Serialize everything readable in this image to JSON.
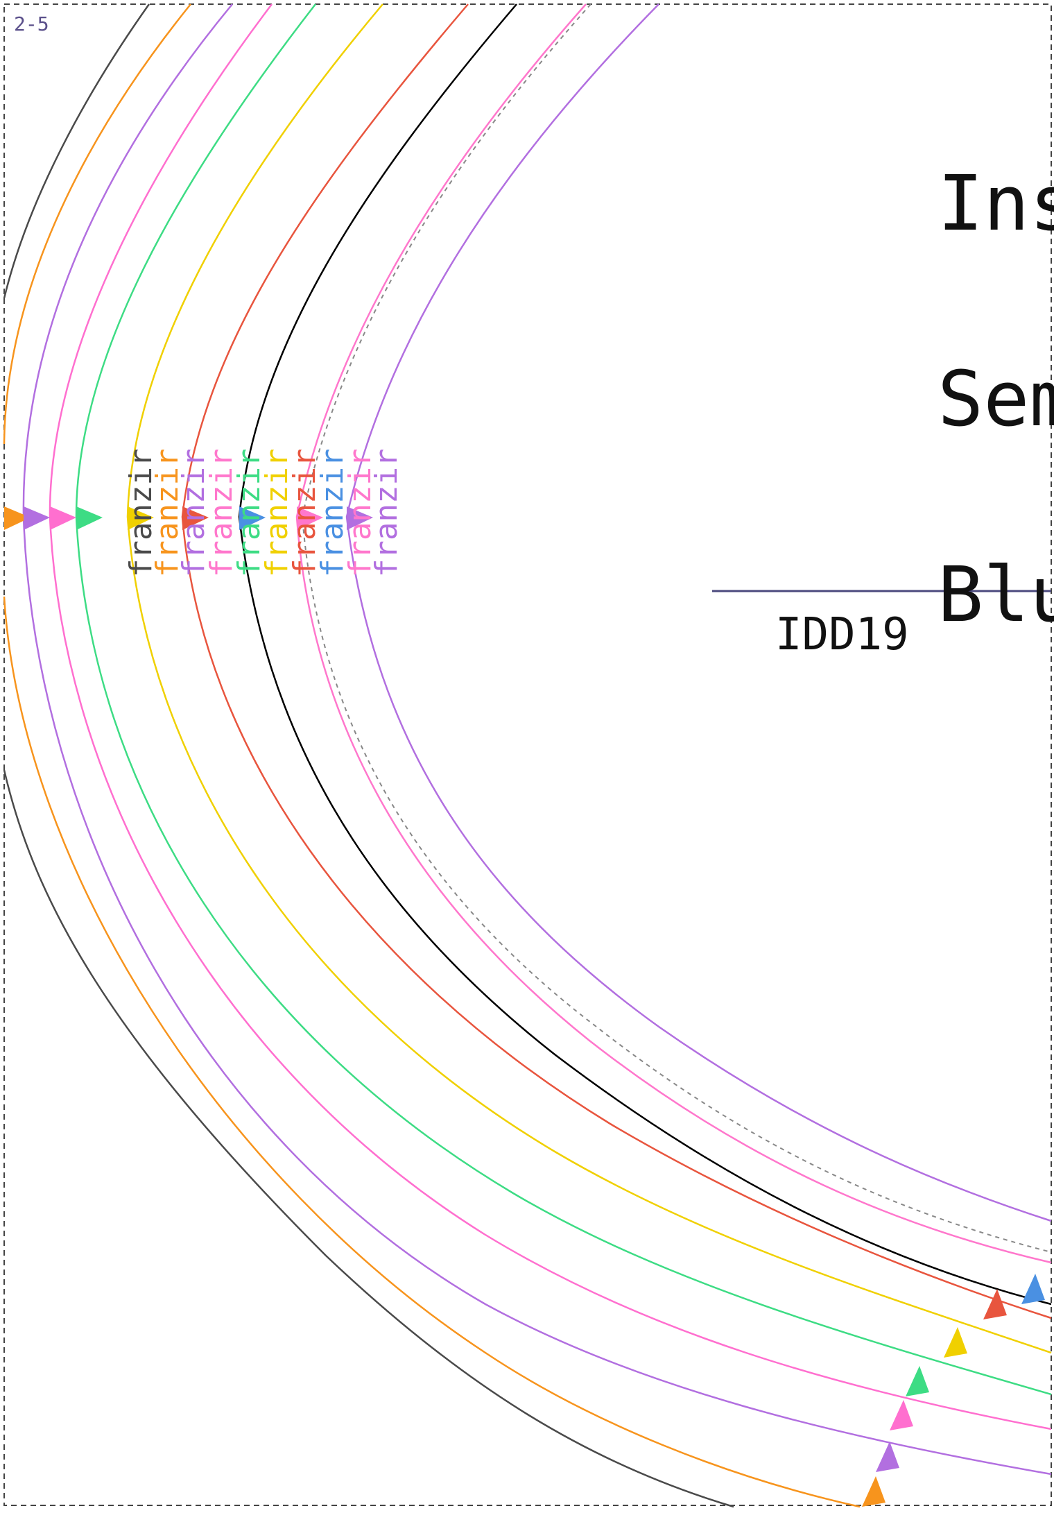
{
  "page_label": "2-5",
  "title_lines": [
    "Ins",
    "Sem",
    "Blu"
  ],
  "id_label": "IDD19",
  "route_label": "franzir",
  "colors": {
    "frame": "#444444",
    "rule": "#4b4a7e",
    "dashed_route": "#888888"
  },
  "routes": [
    {
      "color": "#4a4a4a",
      "arrow": false
    },
    {
      "color": "#f7941d",
      "arrow": true
    },
    {
      "color": "#b26fe0",
      "arrow": true
    },
    {
      "color": "#ff6fcf",
      "arrow": true
    },
    {
      "color": "#3ddc84",
      "arrow": true
    },
    {
      "color": "#f0d000",
      "arrow": true
    },
    {
      "color": "#e8553e",
      "arrow": true
    },
    {
      "color": "#000000",
      "arrow": true
    },
    {
      "color": "#ff77cc",
      "arrow": false
    },
    {
      "color": "#b26fe0",
      "arrow": false
    }
  ],
  "label_stack": [
    "#4a4a4a",
    "#f7941d",
    "#b26fe0",
    "#ff77cc",
    "#3ddc84",
    "#f0d000",
    "#e8553e",
    "#4a90e2",
    "#ff77cc",
    "#b26fe0"
  ],
  "left_arrows": [
    "#f7941d",
    "#b26fe0",
    "#ff6fcf",
    "#3ddc84",
    "#f0d000",
    "#e8553e",
    "#4a90e2",
    "#ff77cc",
    "#b26fe0"
  ]
}
